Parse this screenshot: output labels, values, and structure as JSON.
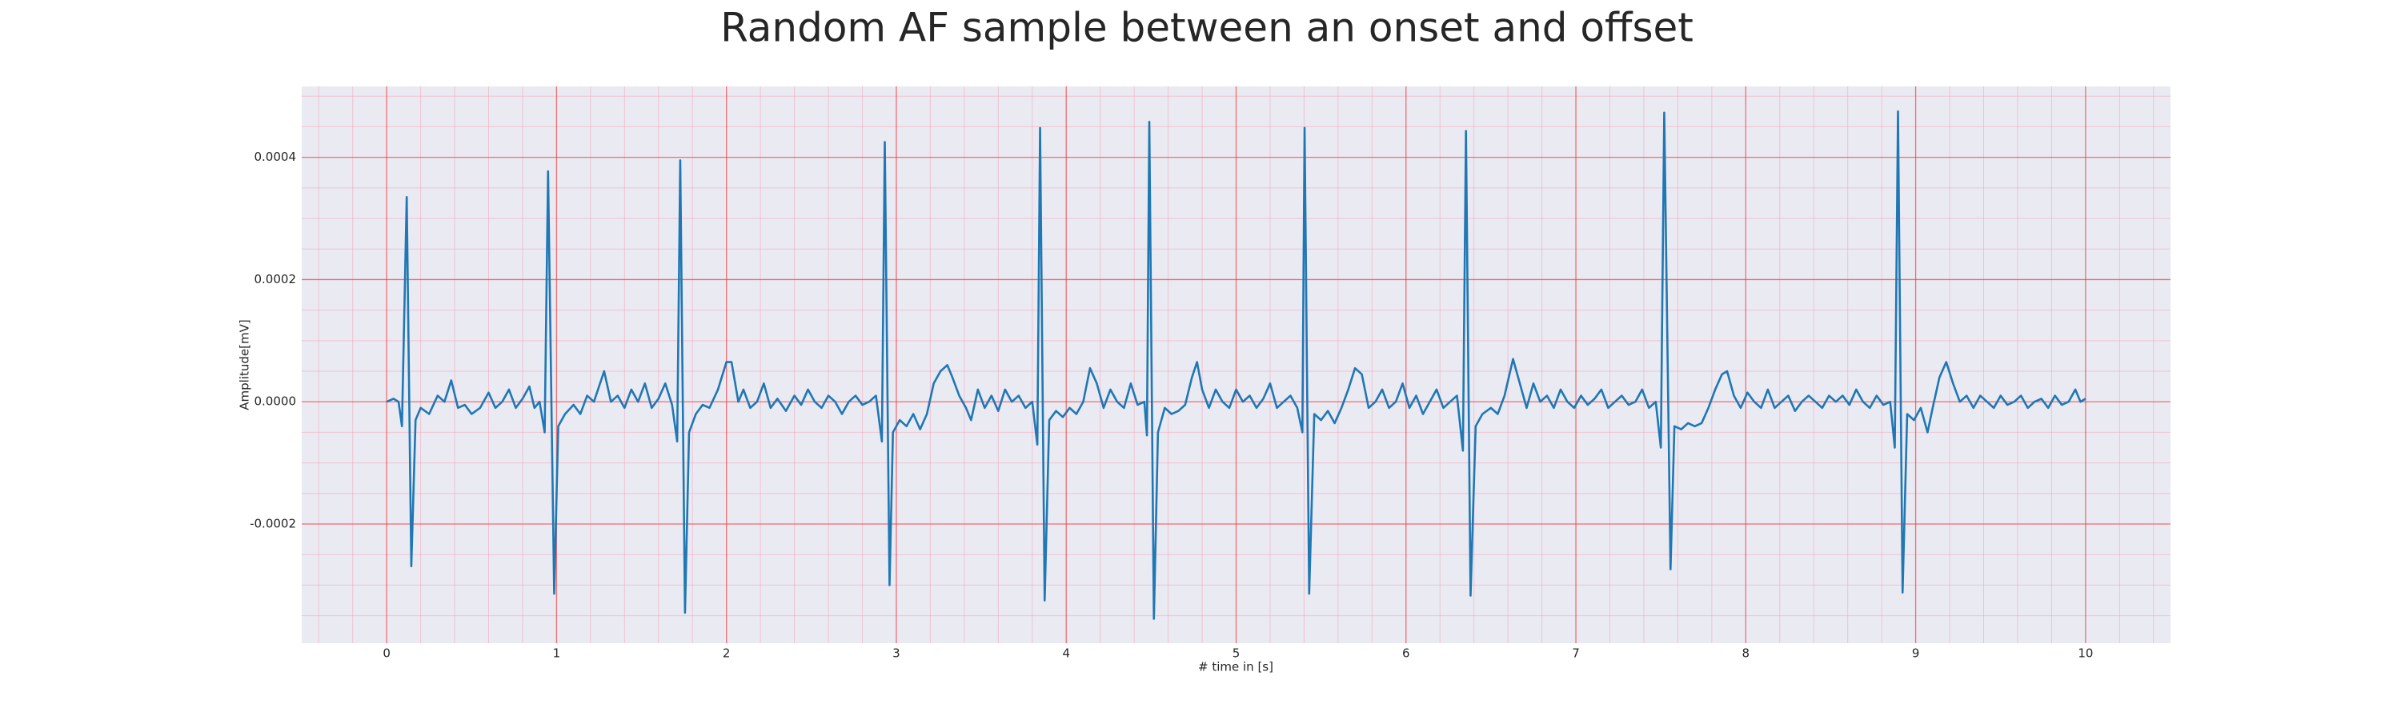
{
  "chart_data": {
    "type": "line",
    "title": "Random AF sample between an onset and offset",
    "xlabel": "# time in [s]",
    "ylabel": "Amplitude[mV]",
    "color": "#1f77b4",
    "grid": true,
    "minor_grid": true,
    "xlim": [
      -0.5,
      10.5
    ],
    "ylim": [
      -0.000395,
      0.000516
    ],
    "xticks": [
      0,
      1,
      2,
      3,
      4,
      5,
      6,
      7,
      8,
      9,
      10
    ],
    "yticks": [
      -0.0002,
      {
        "value": 0,
        "label": "0.0000"
      },
      0.0002,
      0.0004
    ],
    "xticks_minor": [
      -0.4,
      -0.2,
      0.2,
      0.4,
      0.6,
      0.8,
      1.2,
      1.4,
      1.6,
      1.8,
      2.2,
      2.4,
      2.6,
      2.8,
      3.2,
      3.4,
      3.6,
      3.8,
      4.2,
      4.4,
      4.6,
      4.8,
      5.2,
      5.4,
      5.6,
      5.8,
      6.2,
      6.4,
      6.6,
      6.8,
      7.2,
      7.4,
      7.6,
      7.8,
      8.2,
      8.4,
      8.6,
      8.8,
      9.2,
      9.4,
      9.6,
      9.8,
      10.2,
      10.4
    ],
    "yticks_minor": [
      -0.00035,
      -0.0003,
      -0.00025,
      -0.00015,
      -0.0001,
      -5e-05,
      5e-05,
      0.0001,
      0.00015,
      0.00025,
      0.0003,
      0.00035,
      0.00045,
      0.0005
    ],
    "x": [
      0,
      0.04,
      0.07,
      0.09,
      0.118,
      0.145,
      0.17,
      0.2,
      0.25,
      0.3,
      0.34,
      0.38,
      0.42,
      0.46,
      0.5,
      0.55,
      0.6,
      0.64,
      0.68,
      0.72,
      0.76,
      0.8,
      0.84,
      0.87,
      0.9,
      0.93,
      0.95,
      0.986,
      1.01,
      1.05,
      1.1,
      1.14,
      1.18,
      1.22,
      1.28,
      1.32,
      1.36,
      1.4,
      1.44,
      1.48,
      1.52,
      1.56,
      1.6,
      1.64,
      1.68,
      1.71,
      1.728,
      1.756,
      1.78,
      1.82,
      1.86,
      1.9,
      1.95,
      2.0,
      2.03,
      2.07,
      2.1,
      2.14,
      2.18,
      2.22,
      2.26,
      2.3,
      2.35,
      2.4,
      2.44,
      2.48,
      2.52,
      2.56,
      2.6,
      2.64,
      2.68,
      2.72,
      2.76,
      2.8,
      2.84,
      2.88,
      2.915,
      2.932,
      2.96,
      2.98,
      3.02,
      3.06,
      3.1,
      3.14,
      3.18,
      3.22,
      3.26,
      3.3,
      3.33,
      3.37,
      3.41,
      3.44,
      3.48,
      3.52,
      3.56,
      3.6,
      3.64,
      3.68,
      3.72,
      3.76,
      3.8,
      3.83,
      3.846,
      3.873,
      3.9,
      3.94,
      3.98,
      4.02,
      4.06,
      4.1,
      4.14,
      4.18,
      4.22,
      4.26,
      4.3,
      4.34,
      4.38,
      4.42,
      4.46,
      4.475,
      4.489,
      4.516,
      4.54,
      4.58,
      4.62,
      4.66,
      4.7,
      4.74,
      4.77,
      4.8,
      4.84,
      4.88,
      4.92,
      4.96,
      5.0,
      5.04,
      5.08,
      5.12,
      5.16,
      5.2,
      5.24,
      5.28,
      5.32,
      5.36,
      5.39,
      5.403,
      5.43,
      5.46,
      5.5,
      5.54,
      5.58,
      5.62,
      5.66,
      5.7,
      5.74,
      5.78,
      5.82,
      5.86,
      5.9,
      5.94,
      5.98,
      6.02,
      6.06,
      6.1,
      6.14,
      6.18,
      6.22,
      6.26,
      6.3,
      6.335,
      6.353,
      6.38,
      6.41,
      6.45,
      6.5,
      6.54,
      6.58,
      6.63,
      6.67,
      6.71,
      6.75,
      6.79,
      6.83,
      6.87,
      6.91,
      6.95,
      6.99,
      7.03,
      7.07,
      7.11,
      7.15,
      7.19,
      7.23,
      7.27,
      7.31,
      7.35,
      7.39,
      7.43,
      7.47,
      7.5,
      7.52,
      7.557,
      7.58,
      7.62,
      7.66,
      7.7,
      7.74,
      7.78,
      7.82,
      7.86,
      7.89,
      7.93,
      7.97,
      8.01,
      8.05,
      8.09,
      8.13,
      8.17,
      8.21,
      8.25,
      8.29,
      8.33,
      8.37,
      8.41,
      8.45,
      8.49,
      8.53,
      8.57,
      8.61,
      8.65,
      8.69,
      8.73,
      8.77,
      8.81,
      8.85,
      8.877,
      8.896,
      8.923,
      8.95,
      8.99,
      9.03,
      9.07,
      9.1,
      9.14,
      9.18,
      9.22,
      9.26,
      9.3,
      9.34,
      9.38,
      9.42,
      9.46,
      9.5,
      9.54,
      9.58,
      9.62,
      9.66,
      9.7,
      9.74,
      9.78,
      9.82,
      9.86,
      9.9,
      9.94,
      9.97,
      10.0
    ],
    "values": [
      0,
      5e-06,
      0,
      -4e-05,
      0.000335,
      -0.000269,
      -3e-05,
      -1e-05,
      -2e-05,
      1e-05,
      0,
      3.5e-05,
      -1e-05,
      -5e-06,
      -2e-05,
      -1e-05,
      1.5e-05,
      -1e-05,
      0,
      2e-05,
      -1e-05,
      5e-06,
      2.5e-05,
      -1e-05,
      0,
      -5e-05,
      0.000377,
      -0.000314,
      -4e-05,
      -2e-05,
      -5e-06,
      -2e-05,
      1e-05,
      0,
      5e-05,
      0,
      1e-05,
      -1e-05,
      2e-05,
      0,
      3e-05,
      -1e-05,
      5e-06,
      3e-05,
      -5e-06,
      -6.5e-05,
      0.000395,
      -0.000345,
      -5e-05,
      -2e-05,
      -5e-06,
      -1e-05,
      2e-05,
      6.5e-05,
      6.5e-05,
      0,
      2e-05,
      -1e-05,
      0,
      3e-05,
      -1e-05,
      5e-06,
      -1.5e-05,
      1e-05,
      -5e-06,
      2e-05,
      0,
      -1e-05,
      1e-05,
      0,
      -2e-05,
      0,
      1e-05,
      -5e-06,
      0,
      1e-05,
      -6.5e-05,
      0.000425,
      -0.0003,
      -5e-05,
      -3e-05,
      -4e-05,
      -2e-05,
      -4.5e-05,
      -2e-05,
      3e-05,
      5e-05,
      6e-05,
      4e-05,
      1e-05,
      -1e-05,
      -3e-05,
      2e-05,
      -1e-05,
      1e-05,
      -1.5e-05,
      2e-05,
      0,
      1e-05,
      -1e-05,
      0,
      -7e-05,
      0.000448,
      -0.000325,
      -3e-05,
      -1.5e-05,
      -2.5e-05,
      -1e-05,
      -2e-05,
      0,
      5.5e-05,
      3e-05,
      -1e-05,
      2e-05,
      0,
      -1e-05,
      3e-05,
      -5e-06,
      0,
      -5.5e-05,
      0.000458,
      -0.000355,
      -5e-05,
      -1e-05,
      -2e-05,
      -1.5e-05,
      -5e-06,
      4e-05,
      6.5e-05,
      2e-05,
      -1e-05,
      2e-05,
      0,
      -1e-05,
      2e-05,
      0,
      1e-05,
      -1e-05,
      5e-06,
      3e-05,
      -1e-05,
      0,
      1e-05,
      -1e-05,
      -5e-05,
      0.000448,
      -0.000314,
      -2e-05,
      -3e-05,
      -1.5e-05,
      -3.5e-05,
      -1e-05,
      2e-05,
      5.5e-05,
      4.5e-05,
      -1e-05,
      0,
      2e-05,
      -1e-05,
      0,
      3e-05,
      -1e-05,
      1e-05,
      -2e-05,
      0,
      2e-05,
      -1e-05,
      0,
      1e-05,
      -8e-05,
      0.000443,
      -0.000317,
      -4e-05,
      -2e-05,
      -1e-05,
      -2e-05,
      1e-05,
      7e-05,
      3e-05,
      -1e-05,
      3e-05,
      0,
      1e-05,
      -1e-05,
      2e-05,
      0,
      -1e-05,
      1e-05,
      -5e-06,
      5e-06,
      2e-05,
      -1e-05,
      0,
      1e-05,
      -5e-06,
      0,
      2e-05,
      -1e-05,
      0,
      -7.5e-05,
      0.000473,
      -0.000274,
      -4e-05,
      -4.5e-05,
      -3.5e-05,
      -4e-05,
      -3.5e-05,
      -1e-05,
      2e-05,
      4.5e-05,
      5e-05,
      1e-05,
      -1e-05,
      1.5e-05,
      0,
      -1e-05,
      2e-05,
      -1e-05,
      0,
      1e-05,
      -1.5e-05,
      0,
      1e-05,
      0,
      -1e-05,
      1e-05,
      0,
      1e-05,
      -5e-06,
      2e-05,
      0,
      -1e-05,
      1e-05,
      -5e-06,
      0,
      -7.5e-05,
      0.000475,
      -0.000312,
      -2e-05,
      -3e-05,
      -1e-05,
      -5e-05,
      -1e-05,
      4e-05,
      6.5e-05,
      3e-05,
      0,
      1e-05,
      -1e-05,
      1e-05,
      0,
      -1e-05,
      1e-05,
      -5e-06,
      0,
      1e-05,
      -1e-05,
      0,
      5e-06,
      -1e-05,
      1e-05,
      -5e-06,
      0,
      2e-05,
      0,
      5e-06
    ]
  }
}
